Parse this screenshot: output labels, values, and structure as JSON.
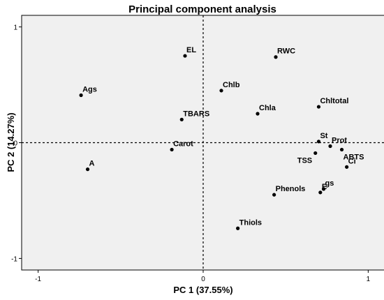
{
  "chart_data": {
    "type": "scatter",
    "title": "Principal component analysis",
    "xlabel": "PC 1 (37.55%)",
    "ylabel": "PC 2 (14.27%)",
    "xlim": [
      -1.1,
      1.1
    ],
    "ylim": [
      -1.1,
      1.1
    ],
    "xticks": [
      {
        "value": -1,
        "label": "-1"
      },
      {
        "value": 0,
        "label": "0"
      },
      {
        "value": 1,
        "label": "1"
      }
    ],
    "yticks": [
      {
        "value": 1,
        "label": "1"
      },
      {
        "value": 0,
        "label": "0"
      },
      {
        "value": -1,
        "label": "-1"
      }
    ],
    "reference_lines": {
      "x": 0,
      "y": 0,
      "style": "dashed"
    },
    "grid": false,
    "background_color": "#f0f0f0",
    "point_color": "#000000",
    "points": [
      {
        "label": "EL",
        "x": -0.11,
        "y": 0.75
      },
      {
        "label": "RWC",
        "x": 0.44,
        "y": 0.74
      },
      {
        "label": "Ags",
        "x": -0.74,
        "y": 0.41
      },
      {
        "label": "Chlb",
        "x": 0.11,
        "y": 0.45
      },
      {
        "label": "Chltotal",
        "x": 0.7,
        "y": 0.31
      },
      {
        "label": "Chla",
        "x": 0.33,
        "y": 0.25
      },
      {
        "label": "TBARS",
        "x": -0.13,
        "y": 0.2
      },
      {
        "label": "Carot",
        "x": -0.19,
        "y": -0.06
      },
      {
        "label": "St",
        "x": 0.7,
        "y": 0.01
      },
      {
        "label": "Prot",
        "x": 0.77,
        "y": -0.03
      },
      {
        "label": "TSS",
        "x": 0.68,
        "y": -0.09
      },
      {
        "label": "ABTS",
        "x": 0.84,
        "y": -0.06
      },
      {
        "label": "Ci",
        "x": 0.87,
        "y": -0.21
      },
      {
        "label": "A",
        "x": -0.7,
        "y": -0.23
      },
      {
        "label": "gs",
        "x": 0.73,
        "y": -0.4
      },
      {
        "label": "Phenols",
        "x": 0.43,
        "y": -0.45
      },
      {
        "label": "E",
        "x": 0.71,
        "y": -0.43
      },
      {
        "label": "Thiols",
        "x": 0.21,
        "y": -0.74
      }
    ]
  }
}
